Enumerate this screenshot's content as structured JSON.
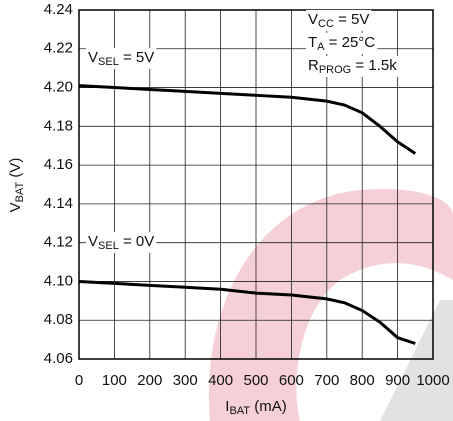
{
  "chart_data": {
    "type": "line",
    "x_label": {
      "text": "I",
      "sub": "BAT",
      "tail": " (mA)"
    },
    "y_label": {
      "text": "V",
      "sub": "BAT",
      "tail": " (V)"
    },
    "annotations": [
      {
        "text": "V",
        "sub": "SEL",
        "tail": " = 5V"
      },
      {
        "text": "V",
        "sub": "SEL",
        "tail": " = 0V"
      },
      {
        "text": "V",
        "sub": "CC",
        "tail": " = 5V"
      },
      {
        "text": "T",
        "sub": "A",
        "tail": " = 25°C"
      },
      {
        "text": "R",
        "sub": "PROG",
        "tail": " = 1.5k"
      }
    ],
    "x": [
      0,
      100,
      200,
      300,
      400,
      500,
      600,
      700,
      750,
      800,
      850,
      900,
      950
    ],
    "series": [
      {
        "color": "#000000",
        "values": [
          4.201,
          4.2,
          4.199,
          4.198,
          4.197,
          4.196,
          4.195,
          4.193,
          4.191,
          4.187,
          4.18,
          4.172,
          4.166
        ]
      },
      {
        "color": "#000000",
        "values": [
          4.1,
          4.099,
          4.098,
          4.097,
          4.096,
          4.094,
          4.093,
          4.091,
          4.089,
          4.085,
          4.079,
          4.071,
          4.068
        ]
      }
    ],
    "xlim": [
      0,
      1000
    ],
    "xticks": [
      0,
      100,
      200,
      300,
      400,
      500,
      600,
      700,
      800,
      900,
      1000
    ],
    "ylim": [
      4.06,
      4.24
    ],
    "yticks": [
      4.06,
      4.08,
      {
        "value": 4.1,
        "label": "4.10"
      },
      4.12,
      4.14,
      4.16,
      4.18,
      {
        "value": 4.2,
        "label": "4.20"
      },
      4.22,
      4.24
    ],
    "grid": true
  }
}
